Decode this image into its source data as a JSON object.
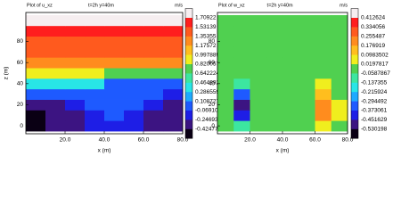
{
  "chart_data": [
    {
      "type": "heatmap",
      "title": "Plot of u_xz",
      "subtitle": "t=2h  y=40m",
      "units": "m/s",
      "xlabel": "x (m)",
      "ylabel": "z (m)",
      "x": [
        5,
        15,
        25,
        35,
        45,
        55,
        65,
        75
      ],
      "y": [
        0,
        10,
        20,
        30,
        40,
        50,
        60,
        70,
        80,
        90,
        100
      ],
      "values": [
        [
          -0.43,
          -0.4,
          -0.3,
          -0.15,
          -0.1,
          -0.15,
          -0.28,
          -0.35
        ],
        [
          -0.43,
          -0.4,
          -0.25,
          -0.1,
          -0.05,
          -0.1,
          -0.3,
          -0.38
        ],
        [
          -0.3,
          -0.25,
          -0.15,
          -0.05,
          0.0,
          -0.05,
          -0.15,
          -0.25
        ],
        [
          -0.05,
          0.0,
          0.05,
          0.05,
          -0.05,
          -0.05,
          -0.05,
          -0.1
        ],
        [
          0.35,
          0.35,
          0.35,
          0.35,
          0.1,
          0.1,
          0.1,
          0.1
        ],
        [
          0.9,
          0.9,
          0.9,
          0.9,
          0.75,
          0.75,
          0.75,
          0.75
        ],
        [
          1.25,
          1.25,
          1.25,
          1.25,
          1.25,
          1.25,
          1.25,
          1.25
        ],
        [
          1.4,
          1.4,
          1.4,
          1.4,
          1.4,
          1.4,
          1.4,
          1.4
        ],
        [
          1.5,
          1.5,
          1.5,
          1.5,
          1.5,
          1.5,
          1.5,
          1.5
        ],
        [
          1.65,
          1.65,
          1.65,
          1.65,
          1.65,
          1.65,
          1.65,
          1.65
        ],
        [
          1.75,
          1.75,
          1.75,
          1.75,
          1.75,
          1.75,
          1.75,
          1.75
        ]
      ],
      "xlim": [
        0,
        80
      ],
      "ylim": [
        -7.5,
        107.5
      ],
      "xticks": [
        {
          "value": 20,
          "label": "20.0"
        },
        {
          "value": 40,
          "label": "40.0"
        },
        {
          "value": 60,
          "label": "60.0"
        },
        {
          "value": 80,
          "label": "80.0"
        }
      ],
      "yticks": [
        0,
        20,
        40,
        60,
        80
      ],
      "levels": [
        1.70922,
        1.53139,
        1.35355,
        1.17572,
        0.997889,
        0.820057,
        0.642224,
        0.464392,
        0.286559,
        0.108727,
        -0.0691057,
        -0.246938,
        -0.424771
      ],
      "colors": [
        "#f6eef0",
        "#ff1e1e",
        "#ff5a1e",
        "#ff8c1e",
        "#ffbe1e",
        "#f0ee1e",
        "#50d050",
        "#3ce6a0",
        "#28e6e6",
        "#1eaaff",
        "#1e5aff",
        "#1e1ee6",
        "#3c1482",
        "#0a0014"
      ]
    },
    {
      "type": "heatmap",
      "title": "Plot of w_xz",
      "subtitle": "t=2h  y=40m",
      "units": "m/s",
      "xlabel": "x (m)",
      "x": [
        5,
        15,
        25,
        35,
        45,
        55,
        65,
        75
      ],
      "y": [
        0,
        10,
        20,
        30,
        40,
        50,
        60,
        70,
        80,
        90,
        100
      ],
      "values": [
        [
          0,
          -0.1,
          0,
          0,
          0,
          0,
          0.05,
          0
        ],
        [
          0,
          -0.45,
          -0.05,
          0,
          0,
          0,
          0.2,
          0.05
        ],
        [
          0,
          -0.52,
          -0.05,
          0,
          0,
          0,
          0.25,
          0.05
        ],
        [
          0,
          -0.3,
          0,
          0,
          0,
          0,
          0.12,
          0
        ],
        [
          0,
          -0.1,
          0,
          0,
          0,
          0,
          0.05,
          0
        ],
        [
          0,
          0,
          0,
          0,
          0,
          0,
          0,
          0
        ],
        [
          0,
          0,
          0,
          0,
          0,
          0,
          0,
          0
        ],
        [
          0,
          0,
          0,
          0,
          0,
          0,
          0,
          0
        ],
        [
          0,
          0,
          0,
          0,
          0,
          0,
          0,
          0
        ],
        [
          0,
          0,
          0,
          0,
          0,
          0,
          0,
          0
        ],
        [
          0,
          0,
          0,
          0,
          0,
          0,
          0,
          0
        ]
      ],
      "xlim": [
        0,
        80
      ],
      "ylim": [
        -7.5,
        107.5
      ],
      "xticks": [
        {
          "value": 20,
          "label": "20.0"
        },
        {
          "value": 40,
          "label": "40.0"
        },
        {
          "value": 60,
          "label": "60.0"
        },
        {
          "value": 80,
          "label": "80.0"
        }
      ],
      "yticks": [
        0,
        20,
        40,
        60,
        80
      ],
      "levels": [
        0.412624,
        0.334056,
        0.255487,
        0.176919,
        0.0983502,
        0.0197817,
        -0.0587867,
        -0.137355,
        -0.215924,
        -0.294492,
        -0.373061,
        -0.451629,
        -0.530198
      ],
      "colors": [
        "#f6eef0",
        "#ff1e1e",
        "#ff5a1e",
        "#ff8c1e",
        "#ffbe1e",
        "#f0ee1e",
        "#50d050",
        "#3ce6a0",
        "#28e6e6",
        "#1eaaff",
        "#1e5aff",
        "#1e1ee6",
        "#3c1482",
        "#0a0014"
      ]
    }
  ]
}
